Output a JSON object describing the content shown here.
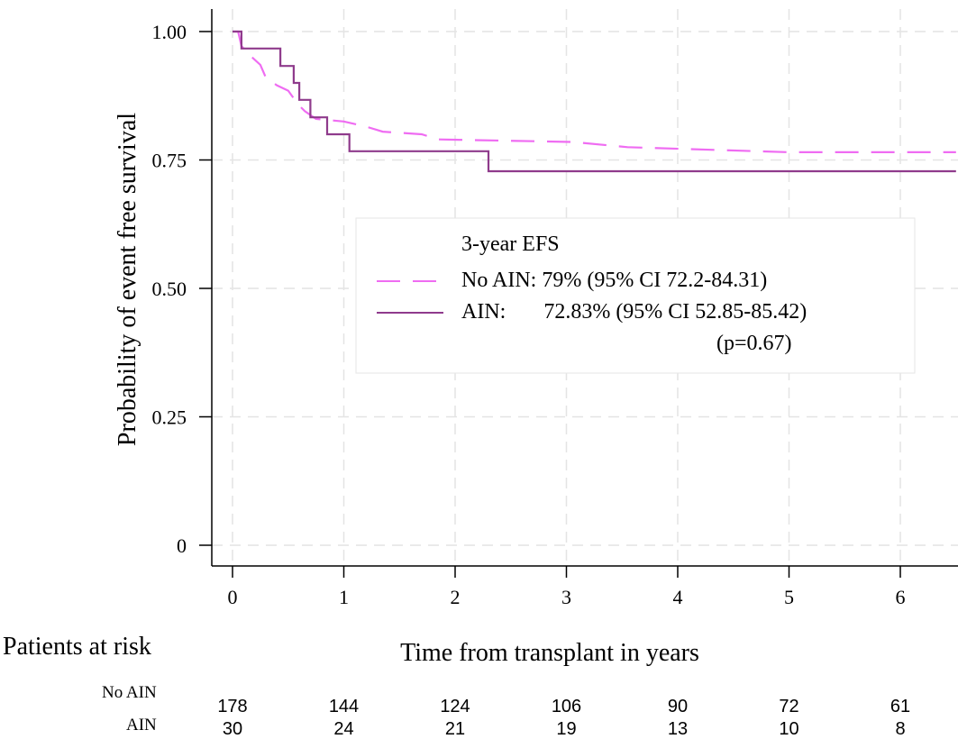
{
  "chart_data": {
    "type": "line",
    "subtype": "kaplan-meier",
    "ylabel": "Probability of event free survival",
    "xlabel": "Time from transplant in years",
    "x_ticks": [
      "0",
      "1",
      "2",
      "3",
      "4",
      "5",
      "6"
    ],
    "y_ticks": [
      "0",
      "0.25",
      "0.50",
      "0.75",
      "1.00"
    ],
    "xlim": [
      0,
      6.5
    ],
    "ylim": [
      0,
      1
    ],
    "grid": true,
    "legend": {
      "placement": "center-right",
      "title": "3-year EFS",
      "entries": [
        {
          "label": "No AIN: 79% (95% CI 72.2-84.31)"
        },
        {
          "label": "AIN:       72.83% (95% CI 52.85-85.42)"
        }
      ],
      "note": "(p=0.67)"
    },
    "series": [
      {
        "name": "No AIN",
        "style": "dashed",
        "color": "#ef6cf2",
        "points": [
          [
            0,
            1.0
          ],
          [
            0.05,
            1.0
          ],
          [
            0.08,
            0.972
          ],
          [
            0.15,
            0.955
          ],
          [
            0.25,
            0.935
          ],
          [
            0.3,
            0.91
          ],
          [
            0.4,
            0.895
          ],
          [
            0.5,
            0.885
          ],
          [
            0.55,
            0.87
          ],
          [
            0.58,
            0.86
          ],
          [
            0.65,
            0.845
          ],
          [
            0.75,
            0.83
          ],
          [
            1.0,
            0.825
          ],
          [
            1.2,
            0.815
          ],
          [
            1.35,
            0.805
          ],
          [
            1.7,
            0.8
          ],
          [
            1.85,
            0.79
          ],
          [
            3.05,
            0.785
          ],
          [
            3.55,
            0.775
          ],
          [
            5.0,
            0.765
          ],
          [
            6.5,
            0.765
          ]
        ]
      },
      {
        "name": "AIN",
        "style": "solid",
        "color": "#8f3b8c",
        "points": [
          [
            0,
            1.0
          ],
          [
            0.08,
            1.0
          ],
          [
            0.08,
            0.967
          ],
          [
            0.43,
            0.967
          ],
          [
            0.43,
            0.933
          ],
          [
            0.55,
            0.933
          ],
          [
            0.55,
            0.9
          ],
          [
            0.6,
            0.9
          ],
          [
            0.6,
            0.867
          ],
          [
            0.7,
            0.867
          ],
          [
            0.7,
            0.833
          ],
          [
            0.85,
            0.833
          ],
          [
            0.85,
            0.8
          ],
          [
            1.05,
            0.8
          ],
          [
            1.05,
            0.767
          ],
          [
            2.3,
            0.767
          ],
          [
            2.3,
            0.728
          ],
          [
            6.5,
            0.728
          ]
        ]
      }
    ],
    "risk_table": {
      "title": "Patients at risk",
      "times": [
        0,
        1,
        2,
        3,
        4,
        5,
        6
      ],
      "rows": [
        {
          "label": "No AIN",
          "counts": [
            "178",
            "144",
            "124",
            "106",
            "90",
            "72",
            "61"
          ]
        },
        {
          "label": "AIN",
          "counts": [
            "30",
            "24",
            "21",
            "19",
            "13",
            "10",
            "8"
          ]
        }
      ]
    }
  }
}
